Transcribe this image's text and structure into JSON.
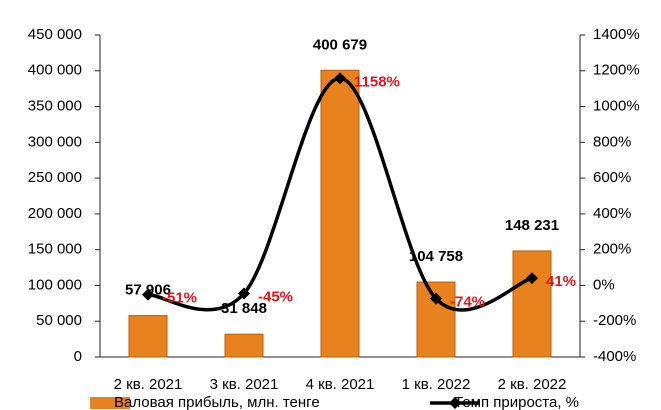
{
  "chart_data": {
    "type": "bar_line",
    "categories": [
      "2 кв. 2021",
      "3 кв. 2021",
      "4 кв. 2021",
      "1 кв. 2022",
      "2 кв. 2022"
    ],
    "series": [
      {
        "name": "Валовая прибыль, млн. тенге",
        "color": "#e8821e",
        "type": "bar",
        "values": [
          57906,
          31848,
          400679,
          104758,
          148231
        ],
        "value_labels": [
          "57 906",
          "31 848",
          "400 679",
          "104 758",
          "148 231"
        ]
      },
      {
        "name": "Темп прироста, %",
        "color": "#000000",
        "type": "line",
        "axis": "y2",
        "label_color": "#e8141c",
        "values": [
          -51,
          -45,
          1158,
          -74,
          41
        ],
        "value_labels": [
          "-51%",
          "-45%",
          "1158%",
          "-74%",
          "41%"
        ]
      }
    ],
    "ylim": [
      0,
      450000
    ],
    "yticks": [
      0,
      {
        "value": 50000,
        "label": "50 000"
      },
      {
        "value": 100000,
        "label": "100 000"
      },
      {
        "value": 150000,
        "label": "150 000"
      },
      {
        "value": 200000,
        "label": "200 000"
      },
      {
        "value": 250000,
        "label": "250 000"
      },
      {
        "value": 300000,
        "label": "300 000"
      },
      {
        "value": 350000,
        "label": "350 000"
      },
      {
        "value": 400000,
        "label": "400 000"
      },
      {
        "value": 450000,
        "label": "450 000"
      }
    ],
    "y2lim": [
      -400,
      1400
    ],
    "y2ticks": [
      {
        "value": -400,
        "label": "-400%"
      },
      {
        "value": -200,
        "label": "-200%"
      },
      {
        "value": 0,
        "label": "0%"
      },
      {
        "value": 200,
        "label": "200%"
      },
      {
        "value": 400,
        "label": "400%"
      },
      {
        "value": 600,
        "label": "600%"
      },
      {
        "value": 800,
        "label": "800%"
      },
      {
        "value": 1000,
        "label": "1000%"
      },
      {
        "value": 1200,
        "label": "1200%"
      },
      {
        "value": 1400,
        "label": "1400%"
      }
    ],
    "grid": false,
    "legend": "bottom"
  }
}
